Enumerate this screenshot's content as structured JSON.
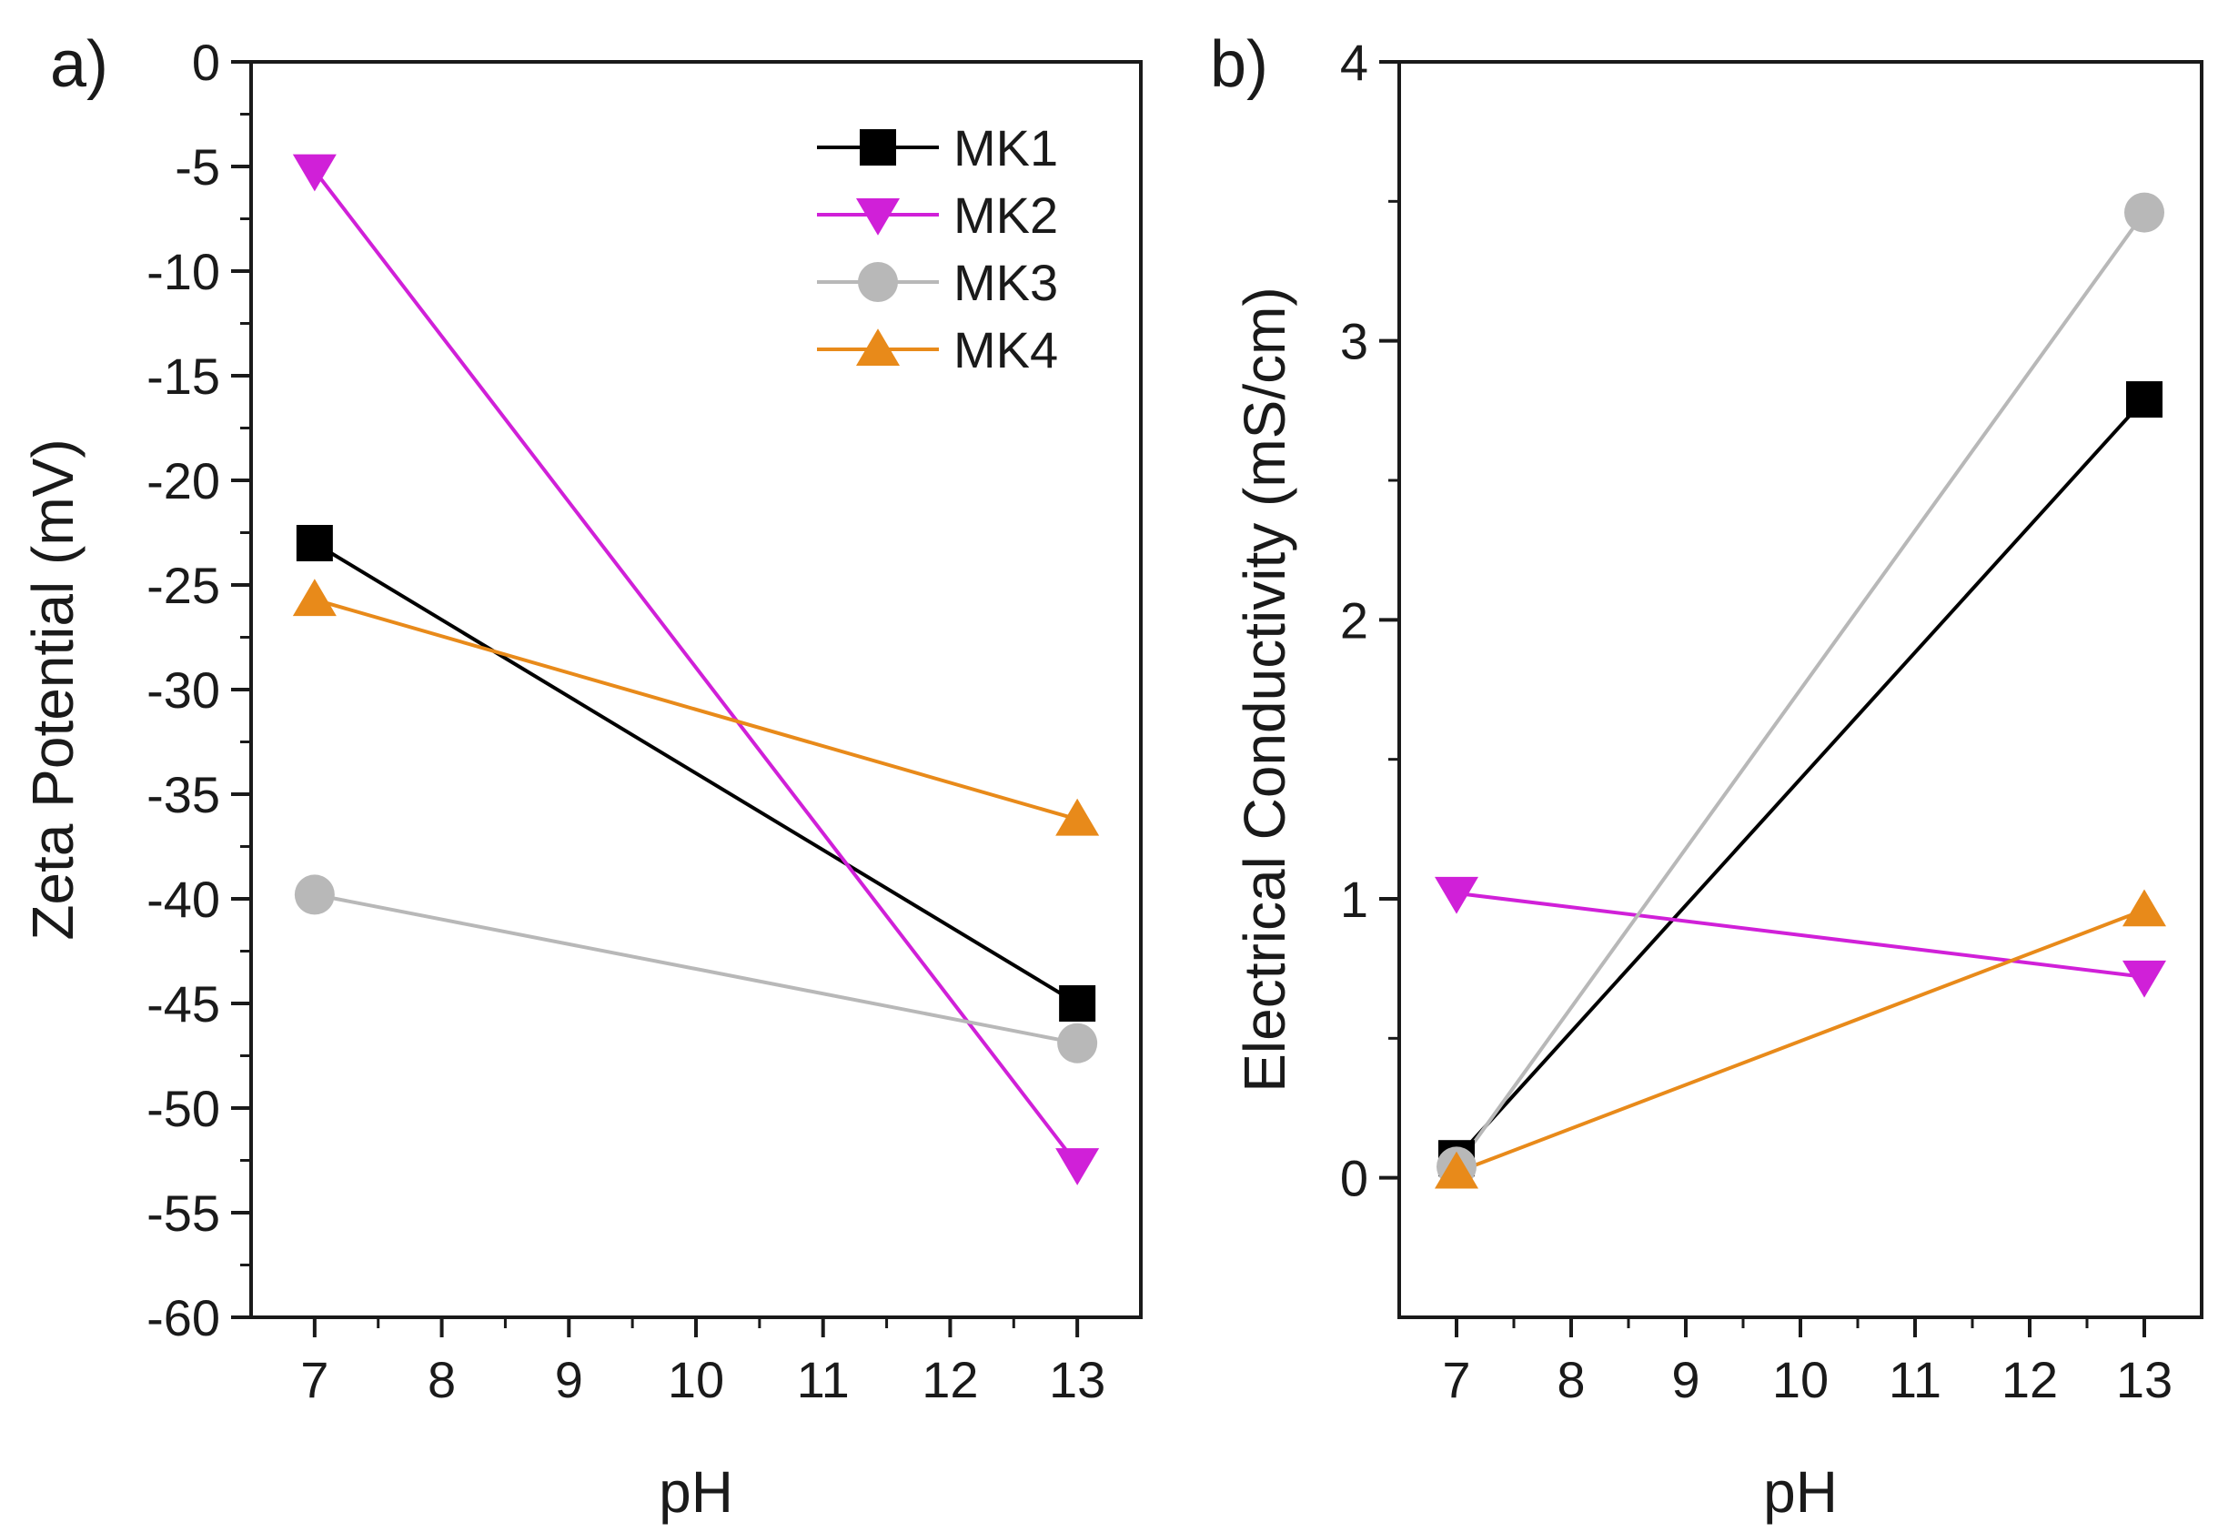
{
  "chart_data": [
    {
      "panel_label": "a)",
      "type": "line",
      "title": "",
      "xlabel": "pH",
      "ylabel": "Zeta Potential (mV)",
      "xlim": [
        6.5,
        13.5
      ],
      "ylim": [
        -60,
        0
      ],
      "xticks": [
        7,
        8,
        9,
        10,
        11,
        12,
        13
      ],
      "yticks": [
        0,
        -5,
        -10,
        -15,
        -20,
        -25,
        -30,
        -35,
        -40,
        -45,
        -50,
        -55,
        -60
      ],
      "grid": false,
      "legend": "top-right",
      "series": [
        {
          "name": "MK1",
          "marker": "square",
          "color": "#000000",
          "x": [
            7,
            13
          ],
          "values": [
            -23,
            -45
          ]
        },
        {
          "name": "MK2",
          "marker": "triangle-down",
          "color": "#d020d8",
          "x": [
            7,
            13
          ],
          "values": [
            -5.2,
            -52.7
          ]
        },
        {
          "name": "MK3",
          "marker": "circle",
          "color": "#b8b8b8",
          "x": [
            7,
            13
          ],
          "values": [
            -39.8,
            -46.9
          ]
        },
        {
          "name": "MK4",
          "marker": "triangle-up",
          "color": "#e88a1a",
          "x": [
            7,
            13
          ],
          "values": [
            -25.7,
            -36.2
          ]
        }
      ]
    },
    {
      "panel_label": "b)",
      "type": "line",
      "title": "",
      "xlabel": "pH",
      "ylabel": "Electrical Conductivity (mS/cm)",
      "xlim": [
        6.5,
        13.5
      ],
      "ylim": [
        -0.5,
        4
      ],
      "xticks": [
        7,
        8,
        9,
        10,
        11,
        12,
        13
      ],
      "yticks": [
        0,
        1,
        2,
        3,
        4
      ],
      "grid": false,
      "legend": "none",
      "series": [
        {
          "name": "MK1",
          "marker": "square",
          "color": "#000000",
          "x": [
            7,
            13
          ],
          "values": [
            0.07,
            2.79
          ]
        },
        {
          "name": "MK2",
          "marker": "triangle-down",
          "color": "#d020d8",
          "x": [
            7,
            13
          ],
          "values": [
            1.02,
            0.72
          ]
        },
        {
          "name": "MK3",
          "marker": "circle",
          "color": "#b8b8b8",
          "x": [
            7,
            13
          ],
          "values": [
            0.04,
            3.46
          ]
        },
        {
          "name": "MK4",
          "marker": "triangle-up",
          "color": "#e88a1a",
          "x": [
            7,
            13
          ],
          "values": [
            0.02,
            0.96
          ]
        }
      ]
    }
  ]
}
